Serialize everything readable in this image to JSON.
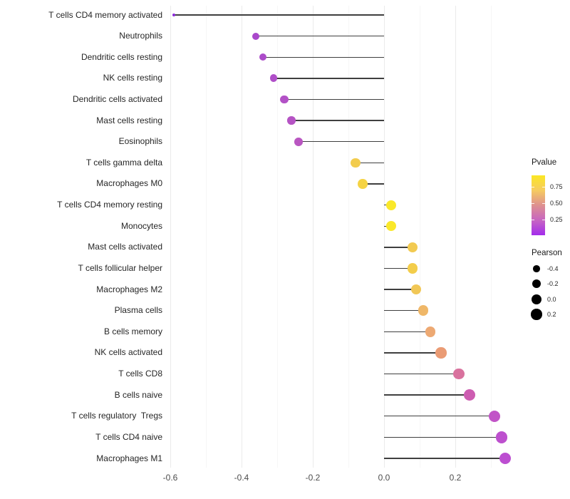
{
  "chart_data": {
    "type": "scatter",
    "subtype": "lollipop",
    "orientation": "horizontal",
    "title": "",
    "xlabel": "",
    "ylabel": "",
    "categories": [
      "T cells CD4 memory activated",
      "Neutrophils",
      "Dendritic cells resting",
      "NK cells resting",
      "Dendritic cells activated",
      "Mast cells resting",
      "Eosinophils",
      "T cells gamma delta",
      "Macrophages M0",
      "T cells CD4 memory resting",
      "Monocytes",
      "Mast cells activated",
      "T cells follicular helper",
      "Macrophages M2",
      "Plasma cells",
      "B cells memory",
      "NK cells activated",
      "T cells CD8",
      "B cells naive",
      "T cells regulatory  Tregs",
      "T cells CD4 naive",
      "Macrophages M1"
    ],
    "series": [
      {
        "name": "Pearson",
        "values": [
          -0.59,
          -0.36,
          -0.34,
          -0.31,
          -0.28,
          -0.26,
          -0.24,
          -0.08,
          -0.06,
          0.02,
          0.02,
          0.08,
          0.08,
          0.09,
          0.11,
          0.13,
          0.16,
          0.21,
          0.24,
          0.31,
          0.33,
          0.34
        ]
      },
      {
        "name": "Pvalue (estimated from color)",
        "values": [
          0.03,
          0.17,
          0.19,
          0.21,
          0.23,
          0.24,
          0.26,
          0.72,
          0.75,
          0.88,
          0.88,
          0.71,
          0.72,
          0.7,
          0.64,
          0.6,
          0.56,
          0.44,
          0.38,
          0.25,
          0.22,
          0.21
        ]
      }
    ],
    "point_colors": [
      "#8B2BD8",
      "#A948CB",
      "#AC4BC9",
      "#AF4EC8",
      "#B251C6",
      "#B553C4",
      "#B956C1",
      "#F2CC4E",
      "#F5D344",
      "#FAE82A",
      "#FAE82A",
      "#F2CA51",
      "#F3CD4B",
      "#F1C756",
      "#EFB768",
      "#EDA973",
      "#EA9B74",
      "#D9729E",
      "#CD5DB1",
      "#C154C7",
      "#BD50CE",
      "#BC4ED1"
    ],
    "baseline": 0,
    "xticks": {
      "values": [
        -0.6,
        -0.4,
        -0.2,
        0,
        0.2
      ],
      "labels": [
        "-0.6",
        "-0.4",
        "-0.2",
        "0.0",
        "0.2"
      ]
    },
    "xminor": [
      -0.5,
      -0.3,
      -0.1,
      0.1,
      0.3
    ],
    "xlim": [
      -0.61,
      0.37
    ],
    "grid": "vertical major+minor",
    "legend_position": "right"
  },
  "legend": {
    "pvalue": {
      "title": "Pvalue",
      "tick_labels": [
        "0.75",
        "0.50",
        "0.25"
      ],
      "gradient_top_to_bottom": [
        "#FBE724",
        "#F6CB60",
        "#DE9090",
        "#C765C2",
        "#A32CEC"
      ]
    },
    "pearson": {
      "title": "Pearson",
      "entries": [
        {
          "label": "-0.4",
          "value": -0.4
        },
        {
          "label": "-0.2",
          "value": -0.2
        },
        {
          "label": "0.0",
          "value": 0.0
        },
        {
          "label": "0.2",
          "value": 0.2
        }
      ],
      "dot_color": "#000000"
    }
  },
  "colors": {
    "background": "#ffffff",
    "stem": "#3f3f3f",
    "grid_major": "#ebebeb",
    "grid_minor": "#f6f6f6",
    "tick_label": "#4d4d4d",
    "category_label": "#262626"
  }
}
